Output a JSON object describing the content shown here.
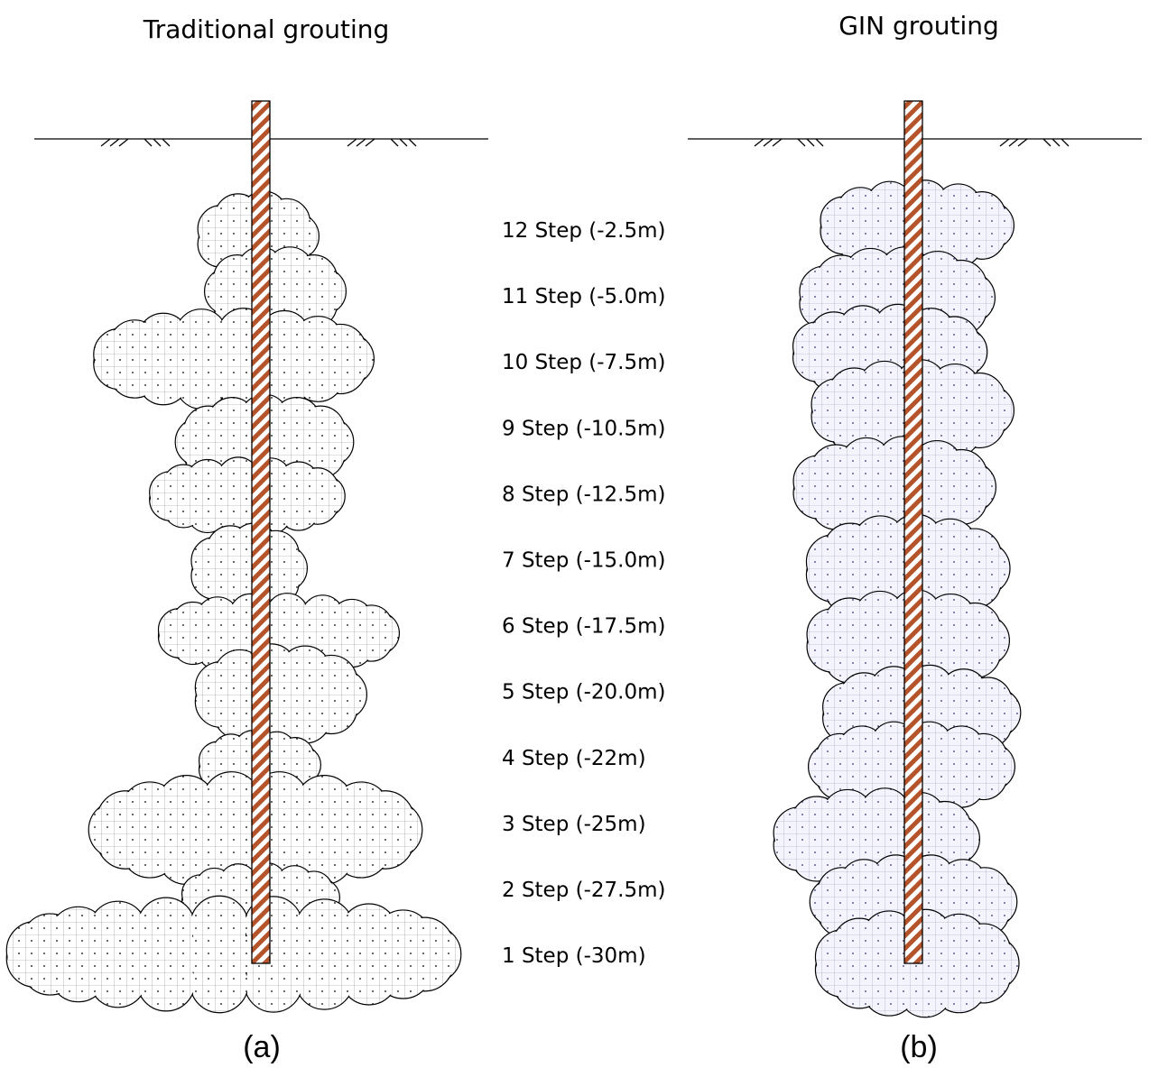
{
  "panels": [
    {
      "title": "Traditional grouting",
      "caption": "(a)"
    },
    {
      "title": "GIN grouting",
      "caption": "(b)"
    }
  ],
  "steps": [
    "12 Step (-2.5m)",
    "11 Step (-5.0m)",
    "10 Step (-7.5m)",
    "9 Step (-10.5m)",
    "8 Step (-12.5m)",
    "7 Step (-15.0m)",
    "6 Step (-17.5m)",
    "5 Step (-20.0m)",
    "4 Step (-22m)",
    "3 Step (-25m)",
    "2 Step (-27.5m)",
    "1 Step (-30m)"
  ]
}
